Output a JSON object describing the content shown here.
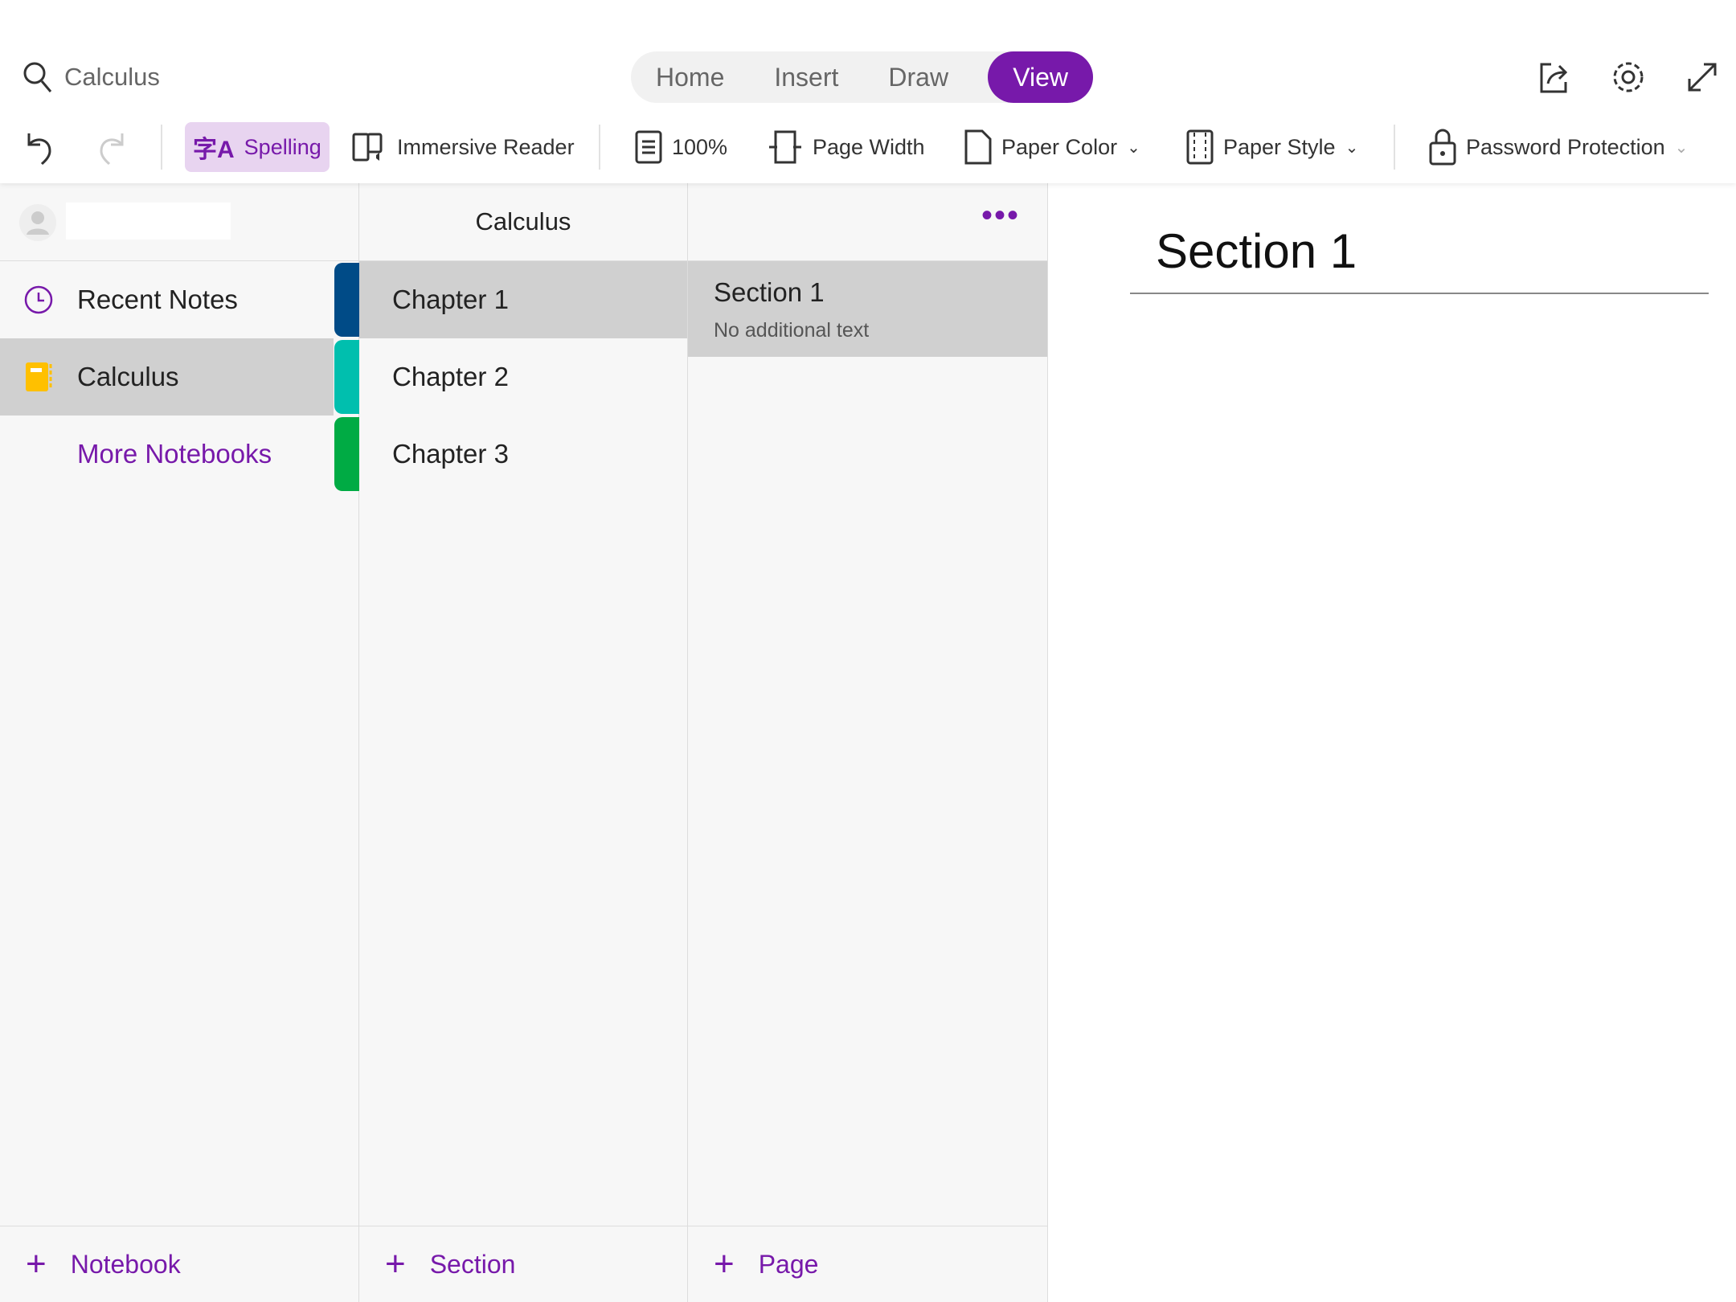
{
  "search": {
    "value": "Calculus"
  },
  "ribbon_tabs": [
    {
      "label": "Home"
    },
    {
      "label": "Insert"
    },
    {
      "label": "Draw"
    },
    {
      "label": "View",
      "active": true
    }
  ],
  "toolbar": {
    "spelling": "Spelling",
    "immersive_reader": "Immersive Reader",
    "zoom": "100%",
    "page_width": "Page Width",
    "paper_color": "Paper Color",
    "paper_style": "Paper Style",
    "password_protection": "Password Protection"
  },
  "notebooks": {
    "items": [
      {
        "label": "Recent Notes"
      },
      {
        "label": "Calculus",
        "selected": true
      }
    ],
    "more": "More Notebooks",
    "add": "Notebook"
  },
  "sections": {
    "title": "Calculus",
    "items": [
      {
        "label": "Chapter 1",
        "color": "#004b87",
        "selected": true
      },
      {
        "label": "Chapter 2",
        "color": "#00bfae"
      },
      {
        "label": "Chapter 3",
        "color": "#00ab44"
      }
    ],
    "add": "Section"
  },
  "pages": {
    "items": [
      {
        "title": "Section 1",
        "preview": "No additional text"
      }
    ],
    "add": "Page"
  },
  "content": {
    "title": "Section 1"
  },
  "colors": {
    "accent": "#7719aa",
    "notebook": "#ffc000"
  }
}
